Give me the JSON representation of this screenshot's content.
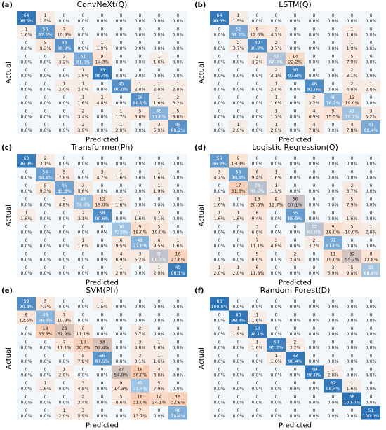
{
  "chart_data": [
    {
      "type": "heatmap",
      "panel_label": "(a)",
      "title": "ConvNeXt(Q)",
      "xlabel": "Predicted",
      "ylabel": "Actual",
      "colormap": [
        "#f2f7fb",
        "#fbe2d3",
        "#f5c3a5",
        "#9fc3e2",
        "#2c73b6"
      ],
      "values": [
        [
          64,
          1,
          0,
          0,
          0,
          0,
          0,
          0,
          0
        ],
        [
          1,
          56,
          7,
          0,
          0,
          0,
          0,
          0,
          0
        ],
        [
          0,
          5,
          48,
          0,
          1,
          0,
          0,
          0,
          0
        ],
        [
          0,
          0,
          2,
          51,
          9,
          0,
          0,
          1,
          0
        ],
        [
          0,
          0,
          0,
          1,
          63,
          0,
          0,
          0,
          0
        ],
        [
          0,
          0,
          1,
          1,
          0,
          45,
          1,
          1,
          1
        ],
        [
          0,
          0,
          0,
          1,
          3,
          0,
          56,
          1,
          2
        ],
        [
          0,
          0,
          0,
          2,
          0,
          1,
          5,
          45,
          5
        ],
        [
          0,
          0,
          0,
          2,
          0,
          1,
          0,
          3,
          45
        ]
      ],
      "percent_labels": [
        [
          "98.5%",
          "1.5%",
          "0.0%",
          "0.0%",
          "0.0%",
          "0.0%",
          "0.0%",
          "0.0%",
          "0.0%"
        ],
        [
          "1.6%",
          "87.5%",
          "10.9%",
          "0.0%",
          "0.0%",
          "0.0%",
          "0.0%",
          "0.0%",
          "0.0%"
        ],
        [
          "0.0%",
          "9.3%",
          "88.9%",
          "0.0%",
          "1.9%",
          "0.0%",
          "0.0%",
          "0.0%",
          "0.0%"
        ],
        [
          "0.0%",
          "0.0%",
          "3.2%",
          "81.0%",
          "14.3%",
          "0.0%",
          "0.0%",
          "1.6%",
          "0.0%"
        ],
        [
          "0.0%",
          "0.0%",
          "0.0%",
          "1.6%",
          "98.4%",
          "0.0%",
          "0.0%",
          "0.0%",
          "0.0%"
        ],
        [
          "0.0%",
          "0.0%",
          "2.0%",
          "2.0%",
          "0.0%",
          "90.0%",
          "2.0%",
          "2.0%",
          "2.0%"
        ],
        [
          "0.0%",
          "0.0%",
          "0.0%",
          "1.6%",
          "4.8%",
          "0.0%",
          "88.9%",
          "1.6%",
          "3.2%"
        ],
        [
          "0.0%",
          "0.0%",
          "0.0%",
          "3.4%",
          "0.0%",
          "1.7%",
          "8.6%",
          "77.6%",
          "8.6%"
        ],
        [
          "0.0%",
          "0.0%",
          "0.0%",
          "3.9%",
          "0.0%",
          "2.0%",
          "0.0%",
          "5.9%",
          "88.2%"
        ]
      ]
    },
    {
      "type": "heatmap",
      "panel_label": "(b)",
      "title": "LSTM(Q)",
      "xlabel": "Predicted",
      "ylabel": "Actual",
      "colormap": [
        "#f2f7fb",
        "#fbe2d3",
        "#f5c3a5",
        "#9fc3e2",
        "#2c73b6"
      ],
      "values": [
        [
          64,
          1,
          0,
          0,
          0,
          0,
          0,
          0,
          0
        ],
        [
          0,
          52,
          8,
          3,
          0,
          0,
          0,
          1,
          0
        ],
        [
          0,
          2,
          49,
          2,
          0,
          0,
          0,
          1,
          0
        ],
        [
          0,
          0,
          2,
          42,
          14,
          0,
          0,
          5,
          0
        ],
        [
          0,
          0,
          0,
          2,
          60,
          0,
          0,
          2,
          0
        ],
        [
          0,
          0,
          0,
          1,
          0,
          46,
          0,
          2,
          1
        ],
        [
          0,
          0,
          0,
          1,
          0,
          2,
          48,
          12,
          0
        ],
        [
          0,
          0,
          0,
          1,
          0,
          4,
          9,
          41,
          3
        ],
        [
          0,
          1,
          0,
          1,
          0,
          4,
          0,
          4,
          41
        ]
      ],
      "percent_labels": [
        [
          "98.5%",
          "1.5%",
          "0.0%",
          "0.0%",
          "0.0%",
          "0.0%",
          "0.0%",
          "0.0%",
          "0.0%"
        ],
        [
          "0.0%",
          "81.2%",
          "12.5%",
          "4.7%",
          "0.0%",
          "0.0%",
          "0.0%",
          "1.6%",
          "0.0%"
        ],
        [
          "0.0%",
          "3.7%",
          "90.7%",
          "3.7%",
          "0.0%",
          "0.0%",
          "0.0%",
          "1.9%",
          "0.0%"
        ],
        [
          "0.0%",
          "0.0%",
          "3.2%",
          "66.7%",
          "22.2%",
          "0.0%",
          "0.0%",
          "7.9%",
          "0.0%"
        ],
        [
          "0.0%",
          "0.0%",
          "0.0%",
          "3.1%",
          "93.8%",
          "0.0%",
          "0.0%",
          "3.1%",
          "0.0%"
        ],
        [
          "0.0%",
          "0.0%",
          "0.0%",
          "2.0%",
          "0.0%",
          "92.0%",
          "0.0%",
          "4.0%",
          "2.0%"
        ],
        [
          "0.0%",
          "0.0%",
          "0.0%",
          "1.6%",
          "0.0%",
          "3.2%",
          "76.2%",
          "19.0%",
          "0.0%"
        ],
        [
          "0.0%",
          "0.0%",
          "0.0%",
          "1.7%",
          "0.0%",
          "6.9%",
          "15.5%",
          "70.7%",
          "5.2%"
        ],
        [
          "0.0%",
          "2.0%",
          "0.0%",
          "2.0%",
          "0.0%",
          "7.8%",
          "0.0%",
          "7.8%",
          "80.4%"
        ]
      ]
    },
    {
      "type": "heatmap",
      "panel_label": "(c)",
      "title": "Transformer(Ph)",
      "xlabel": "Predicted",
      "ylabel": "Actual",
      "colormap": [
        "#f2f7fb",
        "#fbe2d3",
        "#f5c3a5",
        "#9fc3e2",
        "#2c73b6"
      ],
      "values": [
        [
          63,
          2,
          0,
          0,
          0,
          0,
          0,
          0,
          0
        ],
        [
          0,
          54,
          5,
          0,
          3,
          1,
          0,
          1,
          0
        ],
        [
          0,
          5,
          45,
          3,
          0,
          0,
          0,
          1,
          0
        ],
        [
          0,
          0,
          3,
          47,
          12,
          1,
          0,
          0,
          0
        ],
        [
          1,
          0,
          0,
          2,
          58,
          0,
          1,
          2,
          0
        ],
        [
          0,
          0,
          0,
          0,
          0,
          36,
          9,
          5,
          0
        ],
        [
          0,
          0,
          0,
          1,
          0,
          6,
          49,
          6,
          1
        ],
        [
          0,
          0,
          0,
          0,
          0,
          4,
          3,
          35,
          16
        ],
        [
          0,
          0,
          0,
          0,
          0,
          1,
          0,
          1,
          49
        ]
      ],
      "percent_labels": [
        [
          "96.9%",
          "3.1%",
          "0.0%",
          "0.0%",
          "0.0%",
          "0.0%",
          "0.0%",
          "0.0%",
          "0.0%"
        ],
        [
          "0.0%",
          "84.4%",
          "7.8%",
          "0.0%",
          "4.7%",
          "1.6%",
          "0.0%",
          "1.6%",
          "0.0%"
        ],
        [
          "0.0%",
          "9.3%",
          "83.3%",
          "5.6%",
          "0.0%",
          "0.0%",
          "0.0%",
          "1.9%",
          "0.0%"
        ],
        [
          "0.0%",
          "0.0%",
          "4.8%",
          "74.6%",
          "19.0%",
          "1.6%",
          "0.0%",
          "0.0%",
          "0.0%"
        ],
        [
          "1.6%",
          "0.0%",
          "0.0%",
          "3.1%",
          "90.6%",
          "0.0%",
          "1.6%",
          "3.1%",
          "0.0%"
        ],
        [
          "0.0%",
          "0.0%",
          "0.0%",
          "0.0%",
          "0.0%",
          "72.0%",
          "18.0%",
          "10.0%",
          "0.0%"
        ],
        [
          "0.0%",
          "0.0%",
          "0.0%",
          "1.6%",
          "0.0%",
          "9.5%",
          "77.8%",
          "9.5%",
          "1.6%"
        ],
        [
          "0.0%",
          "0.0%",
          "0.0%",
          "0.0%",
          "0.0%",
          "6.9%",
          "5.2%",
          "60.3%",
          "27.6%"
        ],
        [
          "0.0%",
          "0.0%",
          "0.0%",
          "0.0%",
          "0.0%",
          "2.0%",
          "0.0%",
          "2.0%",
          "96.1%"
        ]
      ]
    },
    {
      "type": "heatmap",
      "panel_label": "(d)",
      "title": "Logistic Regression(Q)",
      "xlabel": "Predicted",
      "ylabel": "Actual",
      "colormap": [
        "#f2f7fb",
        "#fbe2d3",
        "#f5c3a5",
        "#9fc3e2",
        "#2c73b6"
      ],
      "values": [
        [
          56,
          9,
          0,
          0,
          0,
          0,
          0,
          0,
          0
        ],
        [
          3,
          54,
          6,
          1,
          0,
          0,
          0,
          0,
          0
        ],
        [
          0,
          17,
          34,
          1,
          0,
          0,
          0,
          2,
          0
        ],
        [
          1,
          0,
          13,
          8,
          36,
          0,
          0,
          5,
          0
        ],
        [
          1,
          1,
          6,
          0,
          55,
          0,
          0,
          1,
          0
        ],
        [
          0,
          0,
          3,
          0,
          0,
          32,
          9,
          5,
          1
        ],
        [
          0,
          0,
          7,
          3,
          0,
          2,
          51,
          0,
          0
        ],
        [
          0,
          0,
          5,
          0,
          2,
          0,
          11,
          32,
          8
        ],
        [
          1,
          1,
          6,
          0,
          0,
          0,
          3,
          5,
          35
        ]
      ],
      "percent_labels": [
        [
          "86.2%",
          "13.8%",
          "0.0%",
          "0.0%",
          "0.0%",
          "0.0%",
          "0.0%",
          "0.0%",
          "0.0%"
        ],
        [
          "4.7%",
          "84.4%",
          "9.4%",
          "1.6%",
          "0.0%",
          "0.0%",
          "0.0%",
          "0.0%",
          "0.0%"
        ],
        [
          "0.0%",
          "31.5%",
          "63.0%",
          "1.9%",
          "0.0%",
          "0.0%",
          "0.0%",
          "3.7%",
          "0.0%"
        ],
        [
          "1.6%",
          "0.0%",
          "20.6%",
          "12.7%",
          "57.1%",
          "0.0%",
          "0.0%",
          "7.9%",
          "0.0%"
        ],
        [
          "1.6%",
          "1.6%",
          "9.4%",
          "0.0%",
          "85.9%",
          "0.0%",
          "0.0%",
          "1.6%",
          "0.0%"
        ],
        [
          "0.0%",
          "0.0%",
          "6.0%",
          "0.0%",
          "0.0%",
          "64.0%",
          "18.0%",
          "10.0%",
          "2.0%"
        ],
        [
          "0.0%",
          "0.0%",
          "11.1%",
          "4.8%",
          "0.0%",
          "3.2%",
          "81.0%",
          "0.0%",
          "0.0%"
        ],
        [
          "0.0%",
          "0.0%",
          "8.6%",
          "0.0%",
          "3.4%",
          "0.0%",
          "19.0%",
          "55.2%",
          "13.8%"
        ],
        [
          "2.0%",
          "2.0%",
          "11.8%",
          "0.0%",
          "0.0%",
          "0.0%",
          "5.9%",
          "9.8%",
          "68.6%"
        ]
      ]
    },
    {
      "type": "heatmap",
      "panel_label": "(e)",
      "title": "SVM(Ph)",
      "xlabel": "Predicted",
      "ylabel": "Actual",
      "colormap": [
        "#f2f7fb",
        "#fbe2d3",
        "#f5c3a5",
        "#9fc3e2",
        "#2c73b6"
      ],
      "values": [
        [
          59,
          5,
          0,
          0,
          1,
          0,
          0,
          0,
          0
        ],
        [
          8,
          49,
          7,
          0,
          0,
          0,
          0,
          0,
          0
        ],
        [
          0,
          18,
          28,
          6,
          0,
          0,
          2,
          0,
          0
        ],
        [
          0,
          0,
          7,
          19,
          33,
          0,
          3,
          1,
          0
        ],
        [
          0,
          0,
          0,
          5,
          56,
          0,
          2,
          1,
          0
        ],
        [
          0,
          0,
          1,
          0,
          0,
          27,
          18,
          4,
          0
        ],
        [
          0,
          1,
          0,
          3,
          0,
          9,
          45,
          5,
          0
        ],
        [
          0,
          0,
          0,
          2,
          0,
          5,
          18,
          14,
          19
        ],
        [
          0,
          0,
          1,
          3,
          0,
          0,
          7,
          0,
          40
        ]
      ],
      "percent_labels": [
        [
          "90.8%",
          "7.7%",
          "0.0%",
          "0.0%",
          "1.5%",
          "0.0%",
          "0.0%",
          "0.0%",
          "0.0%"
        ],
        [
          "12.5%",
          "76.6%",
          "10.9%",
          "0.0%",
          "0.0%",
          "0.0%",
          "0.0%",
          "0.0%",
          "0.0%"
        ],
        [
          "0.0%",
          "33.3%",
          "51.9%",
          "11.1%",
          "0.0%",
          "0.0%",
          "3.7%",
          "0.0%",
          "0.0%"
        ],
        [
          "0.0%",
          "0.0%",
          "11.1%",
          "30.2%",
          "52.4%",
          "0.0%",
          "4.8%",
          "1.6%",
          "0.0%"
        ],
        [
          "0.0%",
          "0.0%",
          "0.0%",
          "7.8%",
          "87.5%",
          "0.0%",
          "3.1%",
          "1.6%",
          "0.0%"
        ],
        [
          "0.0%",
          "0.0%",
          "2.0%",
          "0.0%",
          "0.0%",
          "54.0%",
          "36.0%",
          "8.0%",
          "0.0%"
        ],
        [
          "0.0%",
          "1.6%",
          "0.0%",
          "4.8%",
          "0.0%",
          "14.3%",
          "71.4%",
          "7.9%",
          "0.0%"
        ],
        [
          "0.0%",
          "0.0%",
          "0.0%",
          "3.4%",
          "0.0%",
          "8.6%",
          "31.0%",
          "24.1%",
          "32.8%"
        ],
        [
          "0.0%",
          "0.0%",
          "2.0%",
          "5.9%",
          "0.0%",
          "0.0%",
          "13.7%",
          "0.0%",
          "78.4%"
        ]
      ]
    },
    {
      "type": "heatmap",
      "panel_label": "(f)",
      "title": "Random Forest(D)",
      "xlabel": "Predicted",
      "ylabel": "Actual",
      "colormap": [
        "#f2f7fb",
        "#fbe2d3",
        "#f5c3a5",
        "#9fc3e2",
        "#2c73b6"
      ],
      "values": [
        [
          65,
          0,
          0,
          0,
          0,
          0,
          0,
          0,
          0
        ],
        [
          0,
          63,
          1,
          0,
          0,
          0,
          0,
          0,
          0
        ],
        [
          0,
          1,
          53,
          0,
          0,
          0,
          0,
          0,
          0
        ],
        [
          0,
          0,
          1,
          60,
          2,
          0,
          0,
          0,
          0
        ],
        [
          0,
          0,
          0,
          1,
          63,
          0,
          0,
          0,
          0
        ],
        [
          0,
          0,
          0,
          0,
          0,
          49,
          1,
          0,
          0
        ],
        [
          0,
          0,
          0,
          0,
          0,
          0,
          62,
          1,
          0
        ],
        [
          0,
          0,
          0,
          0,
          0,
          0,
          0,
          58,
          0
        ],
        [
          0,
          0,
          0,
          0,
          0,
          0,
          0,
          0,
          51
        ]
      ],
      "percent_labels": [
        [
          "100.0%",
          "0.0%",
          "0.0%",
          "0.0%",
          "0.0%",
          "0.0%",
          "0.0%",
          "0.0%",
          "0.0%"
        ],
        [
          "0.0%",
          "98.4%",
          "1.6%",
          "0.0%",
          "0.0%",
          "0.0%",
          "0.0%",
          "0.0%",
          "0.0%"
        ],
        [
          "0.0%",
          "1.9%",
          "98.1%",
          "0.0%",
          "0.0%",
          "0.0%",
          "0.0%",
          "0.0%",
          "0.0%"
        ],
        [
          "0.0%",
          "0.0%",
          "1.6%",
          "95.2%",
          "3.2%",
          "0.0%",
          "0.0%",
          "0.0%",
          "0.0%"
        ],
        [
          "0.0%",
          "0.0%",
          "0.0%",
          "1.6%",
          "98.4%",
          "0.0%",
          "0.0%",
          "0.0%",
          "0.0%"
        ],
        [
          "0.0%",
          "0.0%",
          "0.0%",
          "0.0%",
          "0.0%",
          "98.0%",
          "2.0%",
          "0.0%",
          "0.0%"
        ],
        [
          "0.0%",
          "0.0%",
          "0.0%",
          "0.0%",
          "0.0%",
          "0.0%",
          "98.4%",
          "1.6%",
          "0.0%"
        ],
        [
          "0.0%",
          "0.0%",
          "0.0%",
          "0.0%",
          "0.0%",
          "0.0%",
          "0.0%",
          "100.0%",
          "0.0%"
        ],
        [
          "0.0%",
          "0.0%",
          "0.0%",
          "0.0%",
          "0.0%",
          "0.0%",
          "0.0%",
          "0.0%",
          "100.0%"
        ]
      ]
    }
  ]
}
